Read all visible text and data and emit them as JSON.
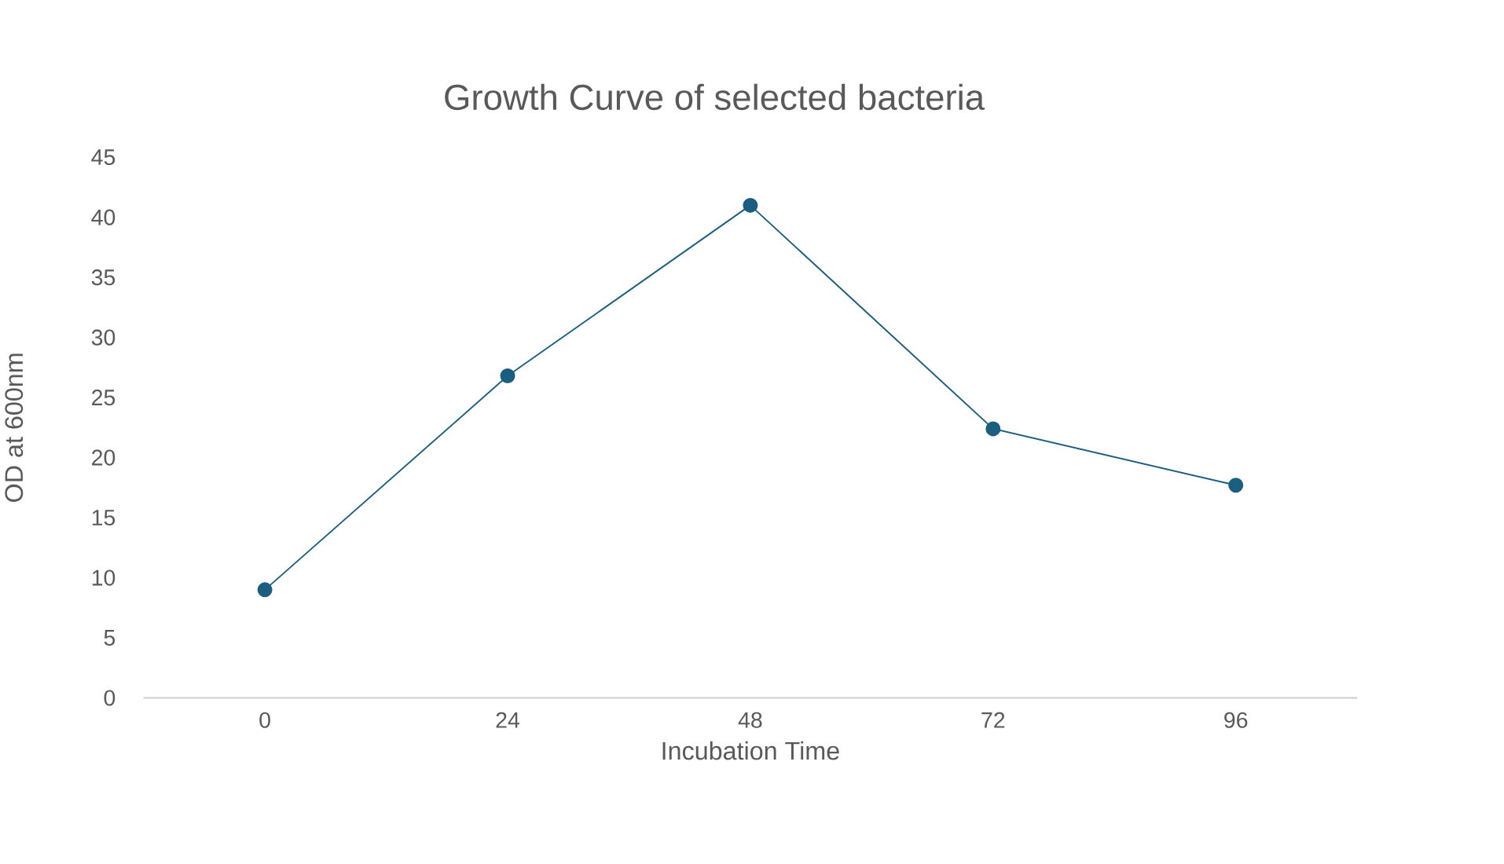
{
  "chart_data": {
    "type": "line",
    "title": "Growth Curve of selected bacteria",
    "xlabel": "Incubation Time",
    "ylabel": "OD at 600nm",
    "categories": [
      "0",
      "24",
      "48",
      "72",
      "96"
    ],
    "series": [
      {
        "color": "#1b5e80",
        "values": [
          9,
          26.8,
          41,
          22.4,
          17.7
        ]
      }
    ],
    "ylim": [
      0,
      45
    ],
    "yticks": [
      0,
      5,
      10,
      15,
      20,
      25,
      30,
      35,
      40,
      45
    ],
    "marker": "circle",
    "line_style": "solid"
  }
}
